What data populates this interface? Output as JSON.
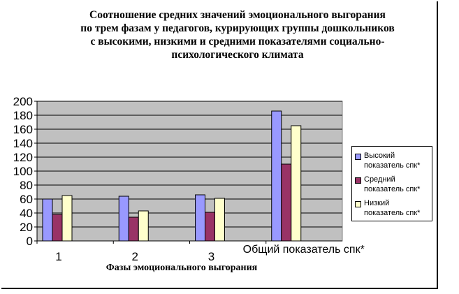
{
  "chart_data": {
    "type": "bar",
    "title_lines": [
      "Соотношение средних значений эмоционального выгорания",
      "по трем фазам у педагогов, курирующих группы дошкольников",
      "с высокими, низкими и средними показателями социально-",
      "психологического климата"
    ],
    "xlabel": "Фазы эмоционального выгорания",
    "ylabel": "",
    "categories": [
      "1",
      "2",
      "3",
      "Общий показатель спк*"
    ],
    "ylim": [
      0,
      200
    ],
    "yticks": [
      0,
      20,
      40,
      60,
      80,
      100,
      120,
      140,
      160,
      180,
      200
    ],
    "grid": true,
    "legend_position": "right",
    "series": [
      {
        "name": "Высокий показатель спк*",
        "color": "#9999ff",
        "values": [
          60,
          64,
          66,
          186
        ]
      },
      {
        "name": "Средний показатель спк*",
        "color": "#993366",
        "values": [
          38,
          34,
          41,
          110
        ]
      },
      {
        "name": "Низкий показатель спк*",
        "color": "#ffffcc",
        "values": [
          65,
          43,
          61,
          165
        ]
      }
    ],
    "plot_background": "#c0c0c0"
  }
}
